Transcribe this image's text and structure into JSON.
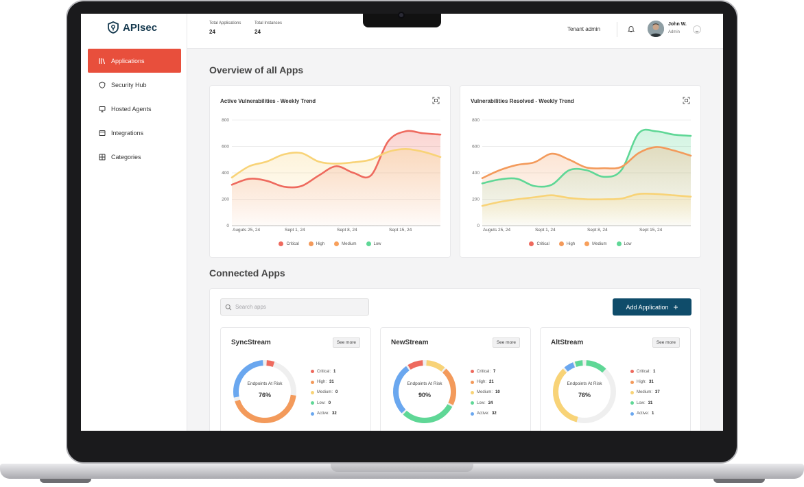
{
  "app": {
    "brand": "APIsec"
  },
  "sidebar": {
    "items": [
      {
        "label": "Applications",
        "icon": "library-icon",
        "active": true
      },
      {
        "label": "Security Hub",
        "icon": "shield-icon",
        "active": false
      },
      {
        "label": "Hosted Agents",
        "icon": "monitor-icon",
        "active": false
      },
      {
        "label": "Integrations",
        "icon": "window-icon",
        "active": false
      },
      {
        "label": "Categories",
        "icon": "grid-icon",
        "active": false
      }
    ]
  },
  "header": {
    "total_applications_label": "Total Applications",
    "total_applications_value": "24",
    "total_instances_label": "Total Instances",
    "total_instances_value": "24",
    "tenant": "Tenant admin",
    "user_name": "John W.",
    "user_role": "Admin"
  },
  "overview": {
    "title": "Overview of all Apps"
  },
  "colors": {
    "critical": "#ee6a5e",
    "high": "#f39a5b",
    "medium": "#f8d377",
    "low": "#5fd796",
    "active": "#6aa7ef",
    "accent": "#e84f3c",
    "primary": "#0f4c6a"
  },
  "chart_data": [
    {
      "type": "line",
      "title": "Active Vulnerabilities - Weekly Trend",
      "x_ticks": [
        "Auguts 25, 24",
        "Sept 1, 24",
        "Sept 8, 24",
        "Sept 15, 24"
      ],
      "ylim": [
        0,
        800
      ],
      "y_ticks": [
        "0",
        "200",
        "400",
        "600",
        "800"
      ],
      "x_points": [
        0,
        1,
        2,
        3,
        4,
        5,
        6,
        7,
        8,
        9,
        10,
        11,
        12
      ],
      "series": [
        {
          "name": "Critical",
          "color": "#ee6a5e",
          "values": [
            310,
            355,
            340,
            295,
            300,
            380,
            450,
            400,
            380,
            640,
            715,
            700,
            690
          ]
        },
        {
          "name": "Medium",
          "color": "#f8d377",
          "values": [
            365,
            450,
            485,
            540,
            550,
            485,
            470,
            480,
            500,
            560,
            580,
            560,
            520
          ]
        }
      ],
      "legend": [
        "Critical",
        "High",
        "Medium",
        "Low"
      ]
    },
    {
      "type": "line",
      "title": "Vulnerabilities Resolved - Weekly Trend",
      "x_ticks": [
        "Auguts 25, 24",
        "Sept 1, 24",
        "Sept 8, 24",
        "Sept 15, 24"
      ],
      "ylim": [
        0,
        800
      ],
      "y_ticks": [
        "0",
        "200",
        "400",
        "600",
        "800"
      ],
      "x_points": [
        0,
        1,
        2,
        3,
        4,
        5,
        6,
        7,
        8,
        9,
        10,
        11,
        12
      ],
      "series": [
        {
          "name": "Low",
          "color": "#5fd796",
          "values": [
            320,
            350,
            355,
            300,
            310,
            420,
            420,
            370,
            420,
            700,
            715,
            690,
            680
          ]
        },
        {
          "name": "High",
          "color": "#f39a5b",
          "values": [
            360,
            420,
            460,
            480,
            545,
            500,
            440,
            435,
            445,
            550,
            595,
            570,
            530
          ]
        },
        {
          "name": "Medium",
          "color": "#f8d377",
          "values": [
            150,
            180,
            200,
            215,
            230,
            210,
            200,
            200,
            205,
            240,
            240,
            230,
            220
          ]
        }
      ],
      "legend": [
        "Critical",
        "High",
        "Medium",
        "Low"
      ]
    }
  ],
  "connected": {
    "title": "Connected Apps",
    "search_placeholder": "Search apps",
    "add_button": "Add Application",
    "donut_label": "Endpoints At Risk",
    "see_more": "See more",
    "apps": [
      {
        "name": "SyncStream",
        "pct": "76%",
        "stats": [
          {
            "key": "critical",
            "label": "Critical:",
            "value": "1"
          },
          {
            "key": "high",
            "label": "High:",
            "value": "31"
          },
          {
            "key": "medium",
            "label": "Medium:",
            "value": "0"
          },
          {
            "key": "low",
            "label": "Low:",
            "value": "0"
          },
          {
            "key": "active",
            "label": "Active:",
            "value": "32"
          }
        ],
        "segments": [
          {
            "key": "critical",
            "from": 0.01,
            "to": 0.05
          },
          {
            "key": "high",
            "from": 0.27,
            "to": 0.7
          },
          {
            "key": "active",
            "from": 0.72,
            "to": 0.99
          }
        ]
      },
      {
        "name": "NewStream",
        "pct": "90%",
        "stats": [
          {
            "key": "critical",
            "label": "Critical:",
            "value": "7"
          },
          {
            "key": "high",
            "label": "High:",
            "value": "21"
          },
          {
            "key": "medium",
            "label": "Medium:",
            "value": "10"
          },
          {
            "key": "low",
            "label": "Low:",
            "value": "24"
          },
          {
            "key": "active",
            "label": "Active:",
            "value": "32"
          }
        ],
        "segments": [
          {
            "key": "medium",
            "from": 0.01,
            "to": 0.11
          },
          {
            "key": "high",
            "from": 0.12,
            "to": 0.32
          },
          {
            "key": "low",
            "from": 0.33,
            "to": 0.62
          },
          {
            "key": "active",
            "from": 0.63,
            "to": 0.9
          },
          {
            "key": "critical",
            "from": 0.91,
            "to": 0.99
          }
        ]
      },
      {
        "name": "AltStream",
        "pct": "76%",
        "stats": [
          {
            "key": "critical",
            "label": "Critical:",
            "value": "1"
          },
          {
            "key": "high",
            "label": "High:",
            "value": "31"
          },
          {
            "key": "medium",
            "label": "Medium:",
            "value": "37"
          },
          {
            "key": "low",
            "label": "Low:",
            "value": "31"
          },
          {
            "key": "active",
            "label": "Active:",
            "value": "1"
          }
        ],
        "segments": [
          {
            "key": "low",
            "from": 0.01,
            "to": 0.12
          },
          {
            "key": "medium",
            "from": 0.54,
            "to": 0.88
          },
          {
            "key": "active",
            "from": 0.89,
            "to": 0.94
          },
          {
            "key": "low",
            "from": 0.95,
            "to": 0.99
          }
        ]
      }
    ]
  }
}
